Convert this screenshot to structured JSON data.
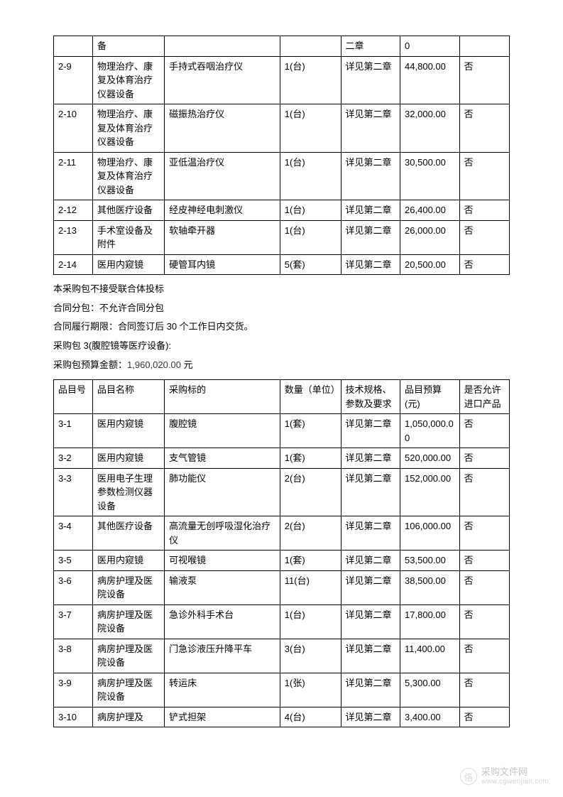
{
  "table1": {
    "columns_widths": [
      "50px",
      "92px",
      "148px",
      "78px",
      "76px",
      "76px",
      "64px"
    ],
    "rows": [
      [
        "",
        "备",
        "",
        "",
        "二章",
        "0",
        ""
      ],
      [
        "2-9",
        "物理治疗、康复及体育治疗仪器设备",
        "手持式吞咽治疗仪",
        "1(台)",
        "详见第二章",
        "44,800.00",
        "否"
      ],
      [
        "2-10",
        "物理治疗、康复及体育治疗仪器设备",
        "磁振热治疗仪",
        "1(台)",
        "详见第二章",
        "32,000.00",
        "否"
      ],
      [
        "2-11",
        "物理治疗、康复及体育治疗仪器设备",
        "亚低温治疗仪",
        "1(台)",
        "详见第二章",
        "30,500.00",
        "否"
      ],
      [
        "2-12",
        "其他医疗设备",
        "经皮神经电刺激仪",
        "1(台)",
        "详见第二章",
        "26,400.00",
        "否"
      ],
      [
        "2-13",
        "手术室设备及附件",
        "软轴牵开器",
        "1(台)",
        "详见第二章",
        "26,000.00",
        "否"
      ],
      [
        "2-14",
        "医用内窥镜",
        "硬管耳内镜",
        "5(套)",
        "详见第二章",
        "20,500.00",
        "否"
      ]
    ]
  },
  "paragraphs": {
    "p1": "本采购包不接受联合体投标",
    "p2": "合同分包：不允许合同分包",
    "p3": "合同履行期限：合同签订后 30 个工作日内交货。",
    "p4": "采购包 3(腹腔镜等医疗设备):",
    "p5_prefix": "采购包预算金额：",
    "p5_amount": "1,960,020.00",
    "p5_suffix": " 元"
  },
  "table2": {
    "header": [
      "品目号",
      "品目名称",
      "采购标的",
      "数量（单位）",
      "技术规格、参数及要求",
      "品目预算(元)",
      "是否允许进口产品"
    ],
    "rows": [
      [
        "3-1",
        "医用内窥镜",
        "腹腔镜",
        "1(套)",
        "详见第二章",
        "1,050,000.00",
        "否"
      ],
      [
        "3-2",
        "医用内窥镜",
        "支气管镜",
        "1(套)",
        "详见第二章",
        "520,000.00",
        "否"
      ],
      [
        "3-3",
        "医用电子生理参数检测仪器设备",
        "肺功能仪",
        "2(台)",
        "详见第二章",
        "152,000.00",
        "否"
      ],
      [
        "3-4",
        "其他医疗设备",
        "高流量无创呼吸湿化治疗仪",
        "2(台)",
        "详见第二章",
        "106,000.00",
        "否"
      ],
      [
        "3-5",
        "医用内窥镜",
        "可视喉镜",
        "1(套)",
        "详见第二章",
        "53,500.00",
        "否"
      ],
      [
        "3-6",
        "病房护理及医院设备",
        "输液泵",
        "11(台)",
        "详见第二章",
        "38,500.00",
        "否"
      ],
      [
        "3-7",
        "病房护理及医院设备",
        "急诊外科手术台",
        "1(台)",
        "详见第二章",
        "17,800.00",
        "否"
      ],
      [
        "3-8",
        "病房护理及医院设备",
        "门急诊液压升降平车",
        "3(台)",
        "详见第二章",
        "11,400.00",
        "否"
      ],
      [
        "3-9",
        "病房护理及医院设备",
        "转运床",
        "1(张)",
        "详见第二章",
        "5,300.00",
        "否"
      ],
      [
        "3-10",
        "病房护理及",
        "铲式担架",
        "4(台)",
        "详见第二章",
        "3,400.00",
        "否"
      ]
    ]
  },
  "watermark": {
    "icon_char": "佫",
    "cn": "采购文件网",
    "url": "www.cgwenjian.com"
  }
}
